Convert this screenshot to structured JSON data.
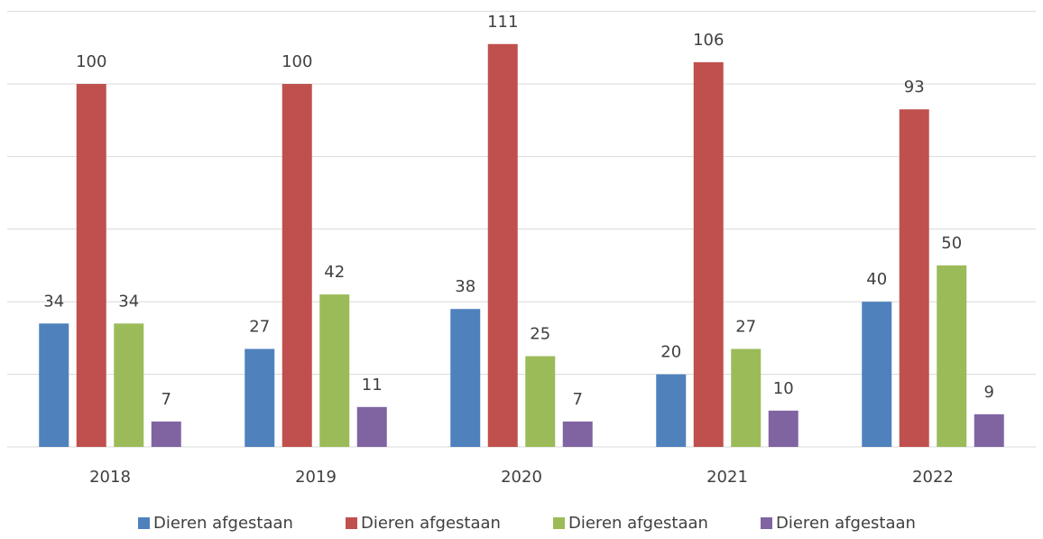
{
  "chart_data": {
    "type": "bar",
    "categories": [
      "2018",
      "2019",
      "2020",
      "2021",
      "2022"
    ],
    "series": [
      {
        "name": "Dieren afgestaan",
        "color": "#4f81bd",
        "values": [
          34,
          27,
          38,
          20,
          40
        ]
      },
      {
        "name": "Dieren afgestaan",
        "color": "#c0504d",
        "values": [
          100,
          100,
          111,
          106,
          93
        ]
      },
      {
        "name": "Dieren afgestaan",
        "color": "#9bbb59",
        "values": [
          34,
          42,
          25,
          27,
          50
        ]
      },
      {
        "name": "Dieren afgestaan",
        "color": "#8064a2",
        "values": [
          7,
          11,
          7,
          10,
          9
        ]
      }
    ],
    "ylim": [
      0,
      120
    ],
    "yticks": [
      0,
      20,
      40,
      60,
      80,
      100,
      120
    ],
    "grid": true,
    "legend": "bottom"
  }
}
